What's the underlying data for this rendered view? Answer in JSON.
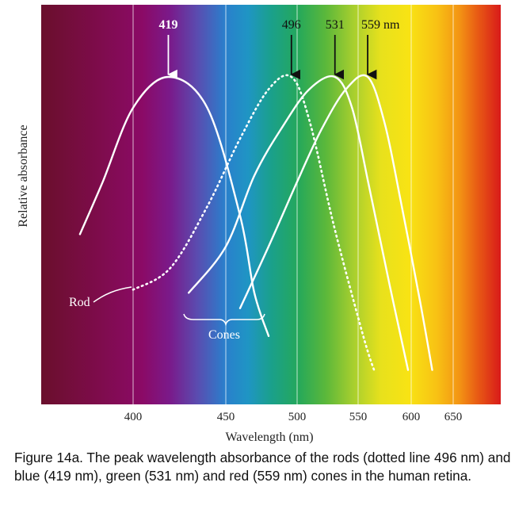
{
  "chart_data": {
    "type": "line",
    "title": "",
    "xlabel": "Wavelength (nm)",
    "ylabel": "Relative absorbance",
    "x_ticks": [
      "400",
      "450",
      "500",
      "550",
      "600",
      "650"
    ],
    "gridlines_x": [
      400,
      450,
      500,
      550,
      600,
      650
    ],
    "peaks": [
      {
        "label": "419",
        "x": 419
      },
      {
        "label": "496",
        "x": 496
      },
      {
        "label": "531",
        "x": 531
      },
      {
        "label": "559 nm",
        "x": 559
      }
    ],
    "series": [
      {
        "name": "Rod",
        "style": "dotted",
        "peak": 496,
        "points": [
          [
            400,
            0.31
          ],
          [
            420,
            0.38
          ],
          [
            440,
            0.58
          ],
          [
            460,
            0.8
          ],
          [
            480,
            0.96
          ],
          [
            496,
            1.0
          ],
          [
            510,
            0.86
          ],
          [
            530,
            0.52
          ],
          [
            550,
            0.22
          ],
          [
            560,
            0.1
          ],
          [
            565,
            0.05
          ]
        ]
      },
      {
        "style": "solid",
        "peak": 419,
        "points": [
          [
            365,
            0.49
          ],
          [
            380,
            0.66
          ],
          [
            400,
            0.9
          ],
          [
            419,
            1.0
          ],
          [
            440,
            0.9
          ],
          [
            460,
            0.55
          ],
          [
            470,
            0.3
          ],
          [
            480,
            0.16
          ]
        ]
      },
      {
        "style": "solid",
        "peak": 531,
        "points": [
          [
            430,
            0.3
          ],
          [
            450,
            0.45
          ],
          [
            470,
            0.68
          ],
          [
            490,
            0.84
          ],
          [
            510,
            0.96
          ],
          [
            531,
            1.0
          ],
          [
            545,
            0.9
          ],
          [
            560,
            0.65
          ],
          [
            580,
            0.32
          ],
          [
            597,
            0.05
          ]
        ]
      },
      {
        "style": "solid",
        "peak": 559,
        "points": [
          [
            460,
            0.25
          ],
          [
            480,
            0.45
          ],
          [
            500,
            0.66
          ],
          [
            520,
            0.83
          ],
          [
            540,
            0.96
          ],
          [
            559,
            1.0
          ],
          [
            575,
            0.85
          ],
          [
            590,
            0.6
          ],
          [
            610,
            0.28
          ],
          [
            625,
            0.05
          ]
        ]
      }
    ],
    "annotations": [
      "Rod",
      "Cones"
    ],
    "grid": true,
    "background": "visible spectrum gradient"
  },
  "caption": "Figure 14a. The peak wavelength absorbance of the rods (dotted line 496 nm) and blue (419 nm), green (531 nm) and red (559 nm) cones in the human retina."
}
